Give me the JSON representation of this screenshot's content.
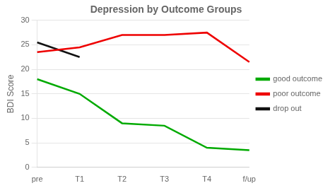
{
  "chart_data": {
    "type": "line",
    "title": "Depression by Outcome Groups",
    "y_label": "BDI Score",
    "categories": [
      "pre",
      "T1",
      "T2",
      "T3",
      "T4",
      "f/up"
    ],
    "series": [
      {
        "name": "good outcome",
        "color": "#00aa00",
        "values": [
          18,
          15,
          9,
          8.5,
          4,
          3.5
        ]
      },
      {
        "name": "poor outcome",
        "color": "#ee0000",
        "values": [
          23.5,
          24.5,
          27,
          27,
          27.5,
          21.5
        ]
      },
      {
        "name": "drop out",
        "color": "#111111",
        "values": [
          25.5,
          22.5,
          null,
          null,
          null,
          null
        ]
      }
    ],
    "ylim": [
      0,
      30
    ],
    "yticks": [
      0,
      5,
      10,
      15,
      20,
      25,
      30
    ],
    "grid": true,
    "legend": "right"
  }
}
